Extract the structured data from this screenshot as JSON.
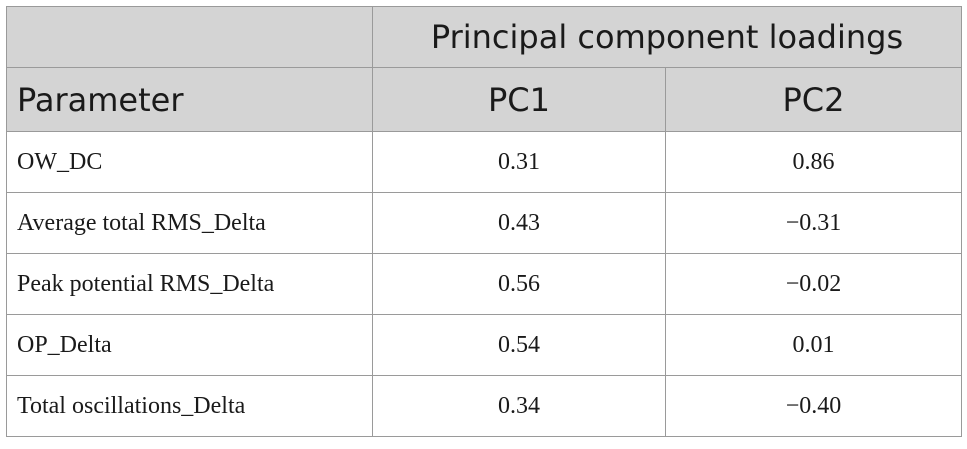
{
  "table": {
    "group_header": "Principal component loadings",
    "columns": [
      "Parameter",
      "PC1",
      "PC2"
    ],
    "rows": [
      {
        "parameter": "OW_DC",
        "pc1": "0.31",
        "pc2": "0.86"
      },
      {
        "parameter": "Average total RMS_Delta",
        "pc1": "0.43",
        "pc2": "−0.31"
      },
      {
        "parameter": "Peak potential RMS_Delta",
        "pc1": "0.56",
        "pc2": "−0.02"
      },
      {
        "parameter": "OP_Delta",
        "pc1": "0.54",
        "pc2": "0.01"
      },
      {
        "parameter": "Total oscillations_Delta",
        "pc1": "0.34",
        "pc2": "−0.40"
      }
    ]
  }
}
